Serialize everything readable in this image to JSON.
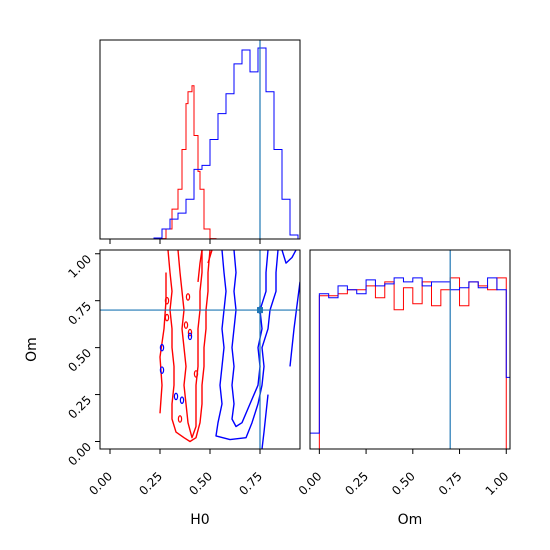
{
  "chart_data": {
    "type": "corner",
    "colors": {
      "run_a": "#ff0000",
      "run_b": "#0000ff",
      "truth": "#1f77b4"
    },
    "truth": {
      "H0": 0.75,
      "Om": 0.7
    },
    "panels": [
      {
        "id": "hist-h0",
        "type": "histogram-step",
        "xlim": [
          -0.05,
          0.95
        ],
        "ylim": [
          0,
          1
        ],
        "y_units": "normalized-height",
        "series": [
          {
            "color": "#ff0000",
            "bins": [
              [
                0.24,
                0.28,
                0.002
              ],
              [
                0.28,
                0.31,
                0.05
              ],
              [
                0.31,
                0.34,
                0.15
              ],
              [
                0.34,
                0.36,
                0.25
              ],
              [
                0.36,
                0.38,
                0.45
              ],
              [
                0.38,
                0.39,
                0.68
              ],
              [
                0.39,
                0.41,
                0.74
              ],
              [
                0.41,
                0.42,
                0.77
              ],
              [
                0.42,
                0.44,
                0.52
              ],
              [
                0.44,
                0.45,
                0.34
              ],
              [
                0.45,
                0.47,
                0.25
              ],
              [
                0.47,
                0.5,
                0.05
              ],
              [
                0.5,
                0.53,
                0.002
              ]
            ]
          },
          {
            "color": "#0000ff",
            "bins": [
              [
                0.22,
                0.26,
                0.005
              ],
              [
                0.26,
                0.3,
                0.05
              ],
              [
                0.3,
                0.34,
                0.1
              ],
              [
                0.34,
                0.38,
                0.13
              ],
              [
                0.38,
                0.42,
                0.2
              ],
              [
                0.42,
                0.46,
                0.35
              ],
              [
                0.46,
                0.5,
                0.37
              ],
              [
                0.5,
                0.54,
                0.5
              ],
              [
                0.54,
                0.58,
                0.63
              ],
              [
                0.58,
                0.62,
                0.73
              ],
              [
                0.62,
                0.66,
                0.88
              ],
              [
                0.66,
                0.7,
                0.95
              ],
              [
                0.7,
                0.74,
                0.84
              ],
              [
                0.74,
                0.78,
                0.96
              ],
              [
                0.78,
                0.82,
                0.74
              ],
              [
                0.82,
                0.86,
                0.45
              ],
              [
                0.86,
                0.9,
                0.2
              ],
              [
                0.9,
                0.94,
                0.02
              ]
            ]
          }
        ]
      },
      {
        "id": "contour-h0-om",
        "type": "contour",
        "xlabel": "H0",
        "ylabel": "Om",
        "xlim": [
          -0.05,
          0.95
        ],
        "ylim": [
          -0.04,
          1.02
        ],
        "xticks": [
          "0.00",
          "0.25",
          "0.50",
          "0.75"
        ],
        "yticks": [
          "0.00",
          "0.25",
          "0.50",
          "0.75",
          "1.00"
        ],
        "series": [
          {
            "color": "#ff0000",
            "paths": [
              [
                [
                  0.34,
                  1.02
                ],
                [
                  0.35,
                  0.9
                ],
                [
                  0.36,
                  0.8
                ],
                [
                  0.37,
                  0.7
                ],
                [
                  0.36,
                  0.6
                ],
                [
                  0.37,
                  0.5
                ],
                [
                  0.38,
                  0.4
                ],
                [
                  0.37,
                  0.3
                ],
                [
                  0.38,
                  0.2
                ],
                [
                  0.39,
                  0.1
                ],
                [
                  0.41,
                  0.02
                ],
                [
                  0.43,
                  0.08
                ],
                [
                  0.43,
                  0.2
                ],
                [
                  0.43,
                  0.3
                ],
                [
                  0.44,
                  0.4
                ],
                [
                  0.44,
                  0.5
                ],
                [
                  0.44,
                  0.6
                ],
                [
                  0.45,
                  0.7
                ],
                [
                  0.45,
                  0.8
                ],
                [
                  0.46,
                  0.9
                ],
                [
                  0.46,
                  1.02
                ]
              ],
              [
                [
                  0.29,
                  1.02
                ],
                [
                  0.3,
                  0.9
                ],
                [
                  0.31,
                  0.8
                ],
                [
                  0.3,
                  0.7
                ],
                [
                  0.31,
                  0.6
                ],
                [
                  0.31,
                  0.5
                ],
                [
                  0.32,
                  0.4
                ],
                [
                  0.32,
                  0.3
                ],
                [
                  0.31,
                  0.2
                ],
                [
                  0.31,
                  0.12
                ],
                [
                  0.33,
                  0.05
                ],
                [
                  0.37,
                  0.02
                ],
                [
                  0.4,
                  0.0
                ],
                [
                  0.43,
                  0.02
                ],
                [
                  0.45,
                  0.1
                ],
                [
                  0.46,
                  0.2
                ],
                [
                  0.46,
                  0.3
                ],
                [
                  0.47,
                  0.4
                ],
                [
                  0.47,
                  0.5
                ],
                [
                  0.48,
                  0.6
                ],
                [
                  0.48,
                  0.7
                ],
                [
                  0.49,
                  0.8
                ],
                [
                  0.49,
                  0.9
                ],
                [
                  0.5,
                  1.02
                ]
              ],
              [
                [
                  0.25,
                  0.15
                ],
                [
                  0.26,
                  0.3
                ],
                [
                  0.25,
                  0.45
                ],
                [
                  0.27,
                  0.6
                ],
                [
                  0.28,
                  0.75
                ],
                [
                  0.28,
                  0.9
                ]
              ],
              [
                [
                  0.44,
                  0.85
                ],
                [
                  0.45,
                  0.95
                ],
                [
                  0.46,
                  1.02
                ]
              ],
              [
                [
                  0.49,
                  0.95
                ],
                [
                  0.51,
                  1.02
                ]
              ]
            ],
            "islands": [
              [
                0.285,
                0.75
              ],
              [
                0.285,
                0.66
              ],
              [
                0.39,
                0.77
              ],
              [
                0.38,
                0.62
              ],
              [
                0.43,
                0.36
              ],
              [
                0.35,
                0.12
              ],
              [
                0.4,
                0.58
              ]
            ]
          },
          {
            "color": "#0000ff",
            "paths": [
              [
                [
                  0.62,
                  1.02
                ],
                [
                  0.63,
                  0.9
                ],
                [
                  0.62,
                  0.8
                ],
                [
                  0.63,
                  0.7
                ],
                [
                  0.62,
                  0.6
                ],
                [
                  0.61,
                  0.5
                ],
                [
                  0.62,
                  0.4
                ],
                [
                  0.61,
                  0.3
                ],
                [
                  0.62,
                  0.2
                ],
                [
                  0.61,
                  0.12
                ],
                [
                  0.63,
                  0.08
                ],
                [
                  0.66,
                  0.1
                ],
                [
                  0.7,
                  0.2
                ],
                [
                  0.74,
                  0.3
                ],
                [
                  0.75,
                  0.4
                ],
                [
                  0.74,
                  0.5
                ],
                [
                  0.76,
                  0.6
                ],
                [
                  0.75,
                  0.7
                ],
                [
                  0.78,
                  0.8
                ],
                [
                  0.78,
                  0.9
                ],
                [
                  0.79,
                  1.02
                ]
              ],
              [
                [
                  0.56,
                  1.02
                ],
                [
                  0.57,
                  0.9
                ],
                [
                  0.58,
                  0.8
                ],
                [
                  0.57,
                  0.7
                ],
                [
                  0.56,
                  0.6
                ],
                [
                  0.57,
                  0.5
                ],
                [
                  0.56,
                  0.4
                ],
                [
                  0.55,
                  0.3
                ],
                [
                  0.56,
                  0.2
                ],
                [
                  0.54,
                  0.1
                ],
                [
                  0.53,
                  0.03
                ],
                [
                  0.6,
                  0.01
                ],
                [
                  0.68,
                  0.02
                ],
                [
                  0.71,
                  0.1
                ],
                [
                  0.74,
                  0.2
                ],
                [
                  0.76,
                  0.3
                ],
                [
                  0.77,
                  0.4
                ],
                [
                  0.76,
                  0.5
                ],
                [
                  0.79,
                  0.6
                ],
                [
                  0.8,
                  0.7
                ],
                [
                  0.83,
                  0.8
                ],
                [
                  0.83,
                  0.9
                ],
                [
                  0.84,
                  1.02
                ]
              ],
              [
                [
                  0.76,
                  -0.04
                ],
                [
                  0.77,
                  0.05
                ],
                [
                  0.78,
                  0.15
                ],
                [
                  0.79,
                  0.25
                ]
              ],
              [
                [
                  0.9,
                  0.4
                ],
                [
                  0.92,
                  0.6
                ],
                [
                  0.95,
                  0.85
                ]
              ],
              [
                [
                  0.86,
                  1.02
                ],
                [
                  0.88,
                  0.95
                ],
                [
                  0.91,
                  0.98
                ],
                [
                  0.93,
                  1.02
                ]
              ]
            ],
            "islands": [
              [
                0.26,
                0.38
              ],
              [
                0.26,
                0.5
              ],
              [
                0.33,
                0.24
              ],
              [
                0.36,
                0.22
              ],
              [
                0.4,
                0.56
              ],
              [
                0.75,
                0.7
              ]
            ]
          }
        ]
      },
      {
        "id": "hist-om",
        "type": "histogram-step",
        "xlabel": "Om",
        "xlim": [
          -0.05,
          1.02
        ],
        "ylim": [
          0,
          1
        ],
        "y_units": "normalized-height",
        "xticks": [
          "0.00",
          "0.25",
          "0.50",
          "0.75",
          "1.00"
        ],
        "series": [
          {
            "color": "#ff0000",
            "bins": [
              [
                0.0,
                0.05,
                0.77
              ],
              [
                0.05,
                0.1,
                0.77
              ],
              [
                0.1,
                0.15,
                0.78
              ],
              [
                0.15,
                0.2,
                0.8
              ],
              [
                0.2,
                0.25,
                0.8
              ],
              [
                0.25,
                0.3,
                0.82
              ],
              [
                0.3,
                0.35,
                0.76
              ],
              [
                0.35,
                0.4,
                0.84
              ],
              [
                0.4,
                0.45,
                0.7
              ],
              [
                0.45,
                0.5,
                0.81
              ],
              [
                0.5,
                0.55,
                0.73
              ],
              [
                0.55,
                0.6,
                0.84
              ],
              [
                0.6,
                0.65,
                0.72
              ],
              [
                0.65,
                0.7,
                0.8
              ],
              [
                0.7,
                0.75,
                0.86
              ],
              [
                0.75,
                0.8,
                0.72
              ],
              [
                0.8,
                0.85,
                0.84
              ],
              [
                0.85,
                0.9,
                0.82
              ],
              [
                0.9,
                0.95,
                0.8
              ],
              [
                0.95,
                1.0,
                0.86
              ]
            ]
          },
          {
            "color": "#0000ff",
            "bins": [
              [
                -0.05,
                0.0,
                0.08
              ],
              [
                0.0,
                0.05,
                0.78
              ],
              [
                0.05,
                0.1,
                0.76
              ],
              [
                0.1,
                0.15,
                0.82
              ],
              [
                0.15,
                0.2,
                0.8
              ],
              [
                0.2,
                0.25,
                0.78
              ],
              [
                0.25,
                0.3,
                0.85
              ],
              [
                0.3,
                0.35,
                0.82
              ],
              [
                0.35,
                0.4,
                0.83
              ],
              [
                0.4,
                0.45,
                0.86
              ],
              [
                0.45,
                0.5,
                0.84
              ],
              [
                0.5,
                0.55,
                0.86
              ],
              [
                0.55,
                0.6,
                0.82
              ],
              [
                0.6,
                0.65,
                0.84
              ],
              [
                0.65,
                0.7,
                0.84
              ],
              [
                0.7,
                0.75,
                0.8
              ],
              [
                0.75,
                0.8,
                0.81
              ],
              [
                0.8,
                0.85,
                0.84
              ],
              [
                0.85,
                0.9,
                0.81
              ],
              [
                0.9,
                0.95,
                0.86
              ],
              [
                0.95,
                1.0,
                0.8
              ],
              [
                1.0,
                1.02,
                0.36
              ]
            ]
          }
        ]
      }
    ]
  }
}
